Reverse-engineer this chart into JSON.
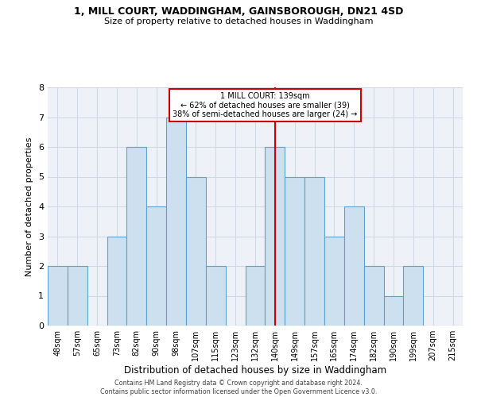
{
  "title1": "1, MILL COURT, WADDINGHAM, GAINSBOROUGH, DN21 4SD",
  "title2": "Size of property relative to detached houses in Waddingham",
  "xlabel": "Distribution of detached houses by size in Waddingham",
  "ylabel": "Number of detached properties",
  "footnote": "Contains HM Land Registry data © Crown copyright and database right 2024.\nContains public sector information licensed under the Open Government Licence v3.0.",
  "bin_labels": [
    "48sqm",
    "57sqm",
    "65sqm",
    "73sqm",
    "82sqm",
    "90sqm",
    "98sqm",
    "107sqm",
    "115sqm",
    "123sqm",
    "132sqm",
    "140sqm",
    "149sqm",
    "157sqm",
    "165sqm",
    "174sqm",
    "182sqm",
    "190sqm",
    "199sqm",
    "207sqm",
    "215sqm"
  ],
  "bar_heights": [
    2,
    2,
    0,
    3,
    6,
    4,
    7,
    5,
    2,
    0,
    2,
    6,
    5,
    5,
    3,
    4,
    2,
    1,
    2,
    0,
    0
  ],
  "bar_color": "#cce0f0",
  "bar_edge_color": "#5ba3d0",
  "ref_line_index": 11,
  "ref_line_color": "#cc0000",
  "ref_line_label": "1 MILL COURT: 139sqm",
  "annotation_line1": "← 62% of detached houses are smaller (39)",
  "annotation_line2": "38% of semi-detached houses are larger (24) →",
  "annotation_box_color": "#cc0000",
  "ylim": [
    0,
    8
  ],
  "yticks": [
    0,
    1,
    2,
    3,
    4,
    5,
    6,
    7,
    8
  ],
  "grid_color": "#d0d8e8",
  "background_color": "#eef2f8"
}
